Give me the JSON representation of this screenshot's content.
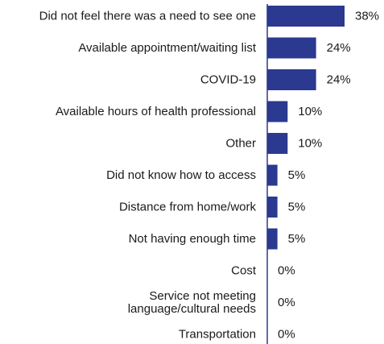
{
  "chart_data": {
    "type": "bar",
    "orientation": "horizontal",
    "categories": [
      "Did not feel there was a need to see one",
      "Available appointment/waiting list",
      "COVID-19",
      "Available hours of health professional",
      "Other",
      "Did not know how to access",
      "Distance from home/work",
      "Not having enough time",
      "Cost",
      "Service not meeting language/cultural needs",
      "Transportation"
    ],
    "category_lines": [
      [
        "Did not feel there was a need to see one"
      ],
      [
        "Available appointment/waiting list"
      ],
      [
        "COVID-19"
      ],
      [
        "Available hours of health professional"
      ],
      [
        "Other"
      ],
      [
        "Did not know how to access"
      ],
      [
        "Distance from home/work"
      ],
      [
        "Not having enough time"
      ],
      [
        "Cost"
      ],
      [
        "Service not meeting",
        "language/cultural needs"
      ],
      [
        "Transportation"
      ]
    ],
    "values": [
      38,
      24,
      24,
      10,
      10,
      5,
      5,
      5,
      0,
      0,
      0
    ],
    "value_labels": [
      "38%",
      "24%",
      "24%",
      "10%",
      "10%",
      "5%",
      "5%",
      "5%",
      "0%",
      "0%",
      "0%"
    ],
    "xlim": [
      0,
      38
    ],
    "grid": false,
    "bar_color": "#2b3990",
    "axis_color": "#2b3990"
  }
}
